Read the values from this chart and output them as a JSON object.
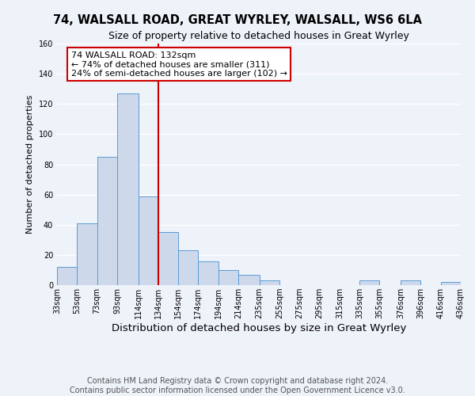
{
  "title": "74, WALSALL ROAD, GREAT WYRLEY, WALSALL, WS6 6LA",
  "subtitle": "Size of property relative to detached houses in Great Wyrley",
  "xlabel": "Distribution of detached houses by size in Great Wyrley",
  "ylabel": "Number of detached properties",
  "bin_edges": [
    33,
    53,
    73,
    93,
    114,
    134,
    154,
    174,
    194,
    214,
    235,
    255,
    275,
    295,
    315,
    335,
    355,
    376,
    396,
    416,
    436
  ],
  "bin_heights": [
    12,
    41,
    85,
    127,
    59,
    35,
    23,
    16,
    10,
    7,
    3,
    0,
    0,
    0,
    0,
    3,
    0,
    3,
    0,
    2
  ],
  "bar_facecolor": "#cdd9ea",
  "bar_edgecolor": "#5b9bd5",
  "vline_x": 134,
  "vline_color": "#cc0000",
  "annotation_text": "74 WALSALL ROAD: 132sqm\n← 74% of detached houses are smaller (311)\n24% of semi-detached houses are larger (102) →",
  "annotation_box_edgecolor": "#cc0000",
  "annotation_box_facecolor": "#ffffff",
  "ylim": [
    0,
    160
  ],
  "yticks": [
    0,
    20,
    40,
    60,
    80,
    100,
    120,
    140,
    160
  ],
  "xtick_labels": [
    "33sqm",
    "53sqm",
    "73sqm",
    "93sqm",
    "114sqm",
    "134sqm",
    "154sqm",
    "174sqm",
    "194sqm",
    "214sqm",
    "235sqm",
    "255sqm",
    "275sqm",
    "295sqm",
    "315sqm",
    "335sqm",
    "355sqm",
    "376sqm",
    "396sqm",
    "416sqm",
    "436sqm"
  ],
  "background_color": "#eef2f9",
  "grid_color": "#ffffff",
  "footer_text": "Contains HM Land Registry data © Crown copyright and database right 2024.\nContains public sector information licensed under the Open Government Licence v3.0.",
  "title_fontsize": 10.5,
  "subtitle_fontsize": 9,
  "xlabel_fontsize": 9.5,
  "ylabel_fontsize": 8,
  "annotation_fontsize": 8,
  "footer_fontsize": 7,
  "tick_fontsize": 7
}
